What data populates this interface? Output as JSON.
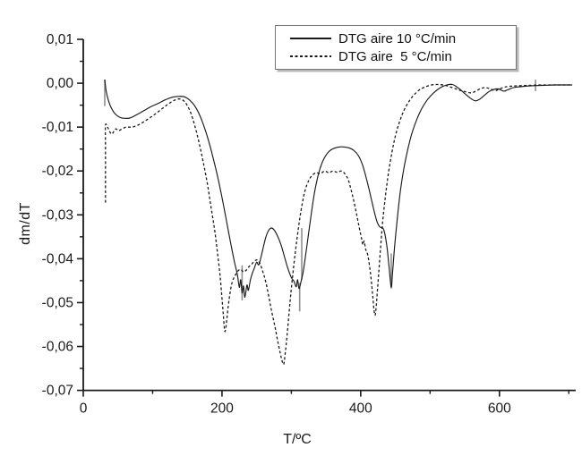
{
  "chart_data": {
    "type": "line",
    "title": "",
    "xlabel": "T/ºC",
    "ylabel": "dm/dT",
    "xlim": [
      0,
      710
    ],
    "ylim": [
      -0.07,
      0.01
    ],
    "grid": false,
    "legend_position": "top-center",
    "colors": {
      "line": "#1a1a1a",
      "axis": "#1a1a1a",
      "noise": "#909090",
      "legend_border": "#767676"
    },
    "x_axis": {
      "major": [
        {
          "t": 0,
          "label": "0"
        },
        {
          "t": 200,
          "label": "200"
        },
        {
          "t": 400,
          "label": "400"
        },
        {
          "t": 600,
          "label": "600"
        }
      ],
      "minor": [
        100,
        300,
        500,
        700
      ]
    },
    "y_axis": {
      "major": [
        {
          "v": 0.01,
          "label": "0,01"
        },
        {
          "v": 0.0,
          "label": "0,00"
        },
        {
          "v": -0.01,
          "label": "-0,01"
        },
        {
          "v": -0.02,
          "label": "-0,02"
        },
        {
          "v": -0.03,
          "label": "-0,03"
        },
        {
          "v": -0.04,
          "label": "-0,04"
        },
        {
          "v": -0.05,
          "label": "-0,05"
        },
        {
          "v": -0.06,
          "label": "-0,06"
        },
        {
          "v": -0.07,
          "label": "-0,07"
        }
      ],
      "minor": [
        0.005,
        -0.005,
        -0.015,
        -0.025,
        -0.035,
        -0.045,
        -0.055,
        -0.065
      ]
    },
    "legend": [
      {
        "label": "DTG aire 10 °C/min",
        "style": "solid"
      },
      {
        "label": "DTG aire  5 °C/min",
        "style": "dashed"
      }
    ],
    "series": [
      {
        "name": "DTG aire 10 °C/min",
        "style": "solid",
        "points": [
          [
            31,
            0.0008
          ],
          [
            33,
            -0.0018
          ],
          [
            36,
            -0.0038
          ],
          [
            40,
            -0.0055
          ],
          [
            46,
            -0.007
          ],
          [
            53,
            -0.0078
          ],
          [
            60,
            -0.008
          ],
          [
            68,
            -0.0079
          ],
          [
            78,
            -0.0071
          ],
          [
            88,
            -0.0062
          ],
          [
            98,
            -0.0053
          ],
          [
            108,
            -0.0046
          ],
          [
            118,
            -0.0038
          ],
          [
            128,
            -0.0032
          ],
          [
            138,
            -0.003
          ],
          [
            146,
            -0.0031
          ],
          [
            153,
            -0.0038
          ],
          [
            160,
            -0.005
          ],
          [
            167,
            -0.007
          ],
          [
            174,
            -0.0098
          ],
          [
            181,
            -0.0133
          ],
          [
            188,
            -0.0175
          ],
          [
            194,
            -0.0215
          ],
          [
            200,
            -0.026
          ],
          [
            206,
            -0.031
          ],
          [
            212,
            -0.036
          ],
          [
            218,
            -0.0408
          ],
          [
            222,
            -0.0435
          ],
          [
            225,
            -0.0465
          ],
          [
            227,
            -0.0448
          ],
          [
            229,
            -0.0478
          ],
          [
            231,
            -0.0462
          ],
          [
            233,
            -0.0488
          ],
          [
            236,
            -0.046
          ],
          [
            238,
            -0.0472
          ],
          [
            241,
            -0.0448
          ],
          [
            244,
            -0.0432
          ],
          [
            247,
            -0.042
          ],
          [
            250,
            -0.0408
          ],
          [
            253,
            -0.0414
          ],
          [
            256,
            -0.0398
          ],
          [
            259,
            -0.0378
          ],
          [
            263,
            -0.0352
          ],
          [
            267,
            -0.0336
          ],
          [
            271,
            -0.033
          ],
          [
            275,
            -0.0334
          ],
          [
            280,
            -0.0348
          ],
          [
            285,
            -0.0368
          ],
          [
            290,
            -0.0395
          ],
          [
            295,
            -0.0422
          ],
          [
            300,
            -0.0443
          ],
          [
            304,
            -0.0452
          ],
          [
            307,
            -0.0464
          ],
          [
            309,
            -0.0448
          ],
          [
            311,
            -0.0468
          ],
          [
            314,
            -0.0452
          ],
          [
            317,
            -0.043
          ],
          [
            320,
            -0.0398
          ],
          [
            324,
            -0.0352
          ],
          [
            328,
            -0.0306
          ],
          [
            332,
            -0.0262
          ],
          [
            336,
            -0.0228
          ],
          [
            341,
            -0.0196
          ],
          [
            347,
            -0.0172
          ],
          [
            354,
            -0.0156
          ],
          [
            362,
            -0.0148
          ],
          [
            372,
            -0.0145
          ],
          [
            382,
            -0.0147
          ],
          [
            390,
            -0.0153
          ],
          [
            397,
            -0.0166
          ],
          [
            403,
            -0.0188
          ],
          [
            409,
            -0.0222
          ],
          [
            415,
            -0.0262
          ],
          [
            420,
            -0.0296
          ],
          [
            424,
            -0.0318
          ],
          [
            428,
            -0.0328
          ],
          [
            432,
            -0.033
          ],
          [
            435,
            -0.0345
          ],
          [
            438,
            -0.0375
          ],
          [
            441,
            -0.042
          ],
          [
            444,
            -0.0465
          ],
          [
            446,
            -0.043
          ],
          [
            449,
            -0.037
          ],
          [
            453,
            -0.0305
          ],
          [
            457,
            -0.0248
          ],
          [
            462,
            -0.0196
          ],
          [
            468,
            -0.015
          ],
          [
            474,
            -0.0113
          ],
          [
            481,
            -0.0082
          ],
          [
            488,
            -0.0058
          ],
          [
            496,
            -0.0038
          ],
          [
            505,
            -0.0022
          ],
          [
            515,
            -0.001
          ],
          [
            524,
            -0.0004
          ],
          [
            532,
            -0.0003
          ],
          [
            540,
            -0.001
          ],
          [
            549,
            -0.0022
          ],
          [
            558,
            -0.0034
          ],
          [
            565,
            -0.004
          ],
          [
            571,
            -0.0037
          ],
          [
            578,
            -0.0028
          ],
          [
            585,
            -0.0019
          ],
          [
            592,
            -0.0014
          ],
          [
            599,
            -0.0013
          ],
          [
            606,
            -0.0018
          ],
          [
            612,
            -0.0015
          ],
          [
            620,
            -0.001
          ],
          [
            630,
            -0.0008
          ],
          [
            645,
            -0.0006
          ],
          [
            660,
            -0.0005
          ],
          [
            680,
            -0.0004
          ],
          [
            705,
            -0.0004
          ]
        ]
      },
      {
        "name": "DTG aire 5 °C/min",
        "style": "dashed",
        "points": [
          [
            32,
            -0.0272
          ],
          [
            32,
            -0.015
          ],
          [
            32,
            -0.0096
          ],
          [
            35,
            -0.01
          ],
          [
            38,
            -0.011
          ],
          [
            41,
            -0.0116
          ],
          [
            44,
            -0.011
          ],
          [
            47,
            -0.0104
          ],
          [
            51,
            -0.0108
          ],
          [
            56,
            -0.0104
          ],
          [
            62,
            -0.01
          ],
          [
            70,
            -0.01
          ],
          [
            78,
            -0.0096
          ],
          [
            86,
            -0.0089
          ],
          [
            95,
            -0.008
          ],
          [
            104,
            -0.007
          ],
          [
            113,
            -0.0059
          ],
          [
            122,
            -0.0048
          ],
          [
            130,
            -0.004
          ],
          [
            137,
            -0.0036
          ],
          [
            143,
            -0.0038
          ],
          [
            149,
            -0.0048
          ],
          [
            155,
            -0.0068
          ],
          [
            161,
            -0.0098
          ],
          [
            167,
            -0.0136
          ],
          [
            173,
            -0.018
          ],
          [
            179,
            -0.023
          ],
          [
            184,
            -0.028
          ],
          [
            189,
            -0.033
          ],
          [
            193,
            -0.038
          ],
          [
            197,
            -0.0435
          ],
          [
            200,
            -0.049
          ],
          [
            202,
            -0.053
          ],
          [
            204,
            -0.0565
          ],
          [
            206,
            -0.0552
          ],
          [
            209,
            -0.0508
          ],
          [
            212,
            -0.0474
          ],
          [
            215,
            -0.0452
          ],
          [
            219,
            -0.0438
          ],
          [
            223,
            -0.0428
          ],
          [
            227,
            -0.0424
          ],
          [
            231,
            -0.043
          ],
          [
            235,
            -0.0426
          ],
          [
            239,
            -0.0418
          ],
          [
            243,
            -0.0412
          ],
          [
            247,
            -0.0405
          ],
          [
            251,
            -0.0403
          ],
          [
            255,
            -0.0412
          ],
          [
            259,
            -0.043
          ],
          [
            263,
            -0.0452
          ],
          [
            267,
            -0.0482
          ],
          [
            271,
            -0.0515
          ],
          [
            276,
            -0.0552
          ],
          [
            280,
            -0.0585
          ],
          [
            284,
            -0.0615
          ],
          [
            287,
            -0.0635
          ],
          [
            289,
            -0.064
          ],
          [
            291,
            -0.0618
          ],
          [
            294,
            -0.0572
          ],
          [
            297,
            -0.0518
          ],
          [
            300,
            -0.0468
          ],
          [
            304,
            -0.0408
          ],
          [
            308,
            -0.0356
          ],
          [
            312,
            -0.031
          ],
          [
            316,
            -0.0272
          ],
          [
            320,
            -0.0243
          ],
          [
            325,
            -0.0222
          ],
          [
            330,
            -0.021
          ],
          [
            336,
            -0.0204
          ],
          [
            342,
            -0.0206
          ],
          [
            348,
            -0.02
          ],
          [
            354,
            -0.0204
          ],
          [
            360,
            -0.02
          ],
          [
            366,
            -0.0203
          ],
          [
            372,
            -0.02
          ],
          [
            377,
            -0.0206
          ],
          [
            382,
            -0.022
          ],
          [
            386,
            -0.0242
          ],
          [
            390,
            -0.0268
          ],
          [
            394,
            -0.0298
          ],
          [
            398,
            -0.033
          ],
          [
            401,
            -0.0352
          ],
          [
            403,
            -0.0368
          ],
          [
            405,
            -0.036
          ],
          [
            407,
            -0.0378
          ],
          [
            409,
            -0.0385
          ],
          [
            411,
            -0.0398
          ],
          [
            414,
            -0.0432
          ],
          [
            417,
            -0.0478
          ],
          [
            419,
            -0.0515
          ],
          [
            421,
            -0.0528
          ],
          [
            423,
            -0.0495
          ],
          [
            426,
            -0.0432
          ],
          [
            429,
            -0.0368
          ],
          [
            432,
            -0.031
          ],
          [
            436,
            -0.0253
          ],
          [
            440,
            -0.0205
          ],
          [
            445,
            -0.0158
          ],
          [
            450,
            -0.012
          ],
          [
            456,
            -0.0088
          ],
          [
            462,
            -0.0063
          ],
          [
            469,
            -0.0043
          ],
          [
            476,
            -0.0028
          ],
          [
            484,
            -0.0016
          ],
          [
            492,
            -0.0009
          ],
          [
            502,
            -0.0004
          ],
          [
            512,
            -0.0003
          ],
          [
            522,
            -0.0005
          ],
          [
            532,
            -0.001
          ],
          [
            541,
            -0.0015
          ],
          [
            550,
            -0.0019
          ],
          [
            559,
            -0.0022
          ],
          [
            566,
            -0.0018
          ],
          [
            573,
            -0.0012
          ],
          [
            580,
            -0.001
          ],
          [
            587,
            -0.0013
          ],
          [
            594,
            -0.0017
          ],
          [
            600,
            -0.0013
          ],
          [
            607,
            -0.0009
          ],
          [
            615,
            -0.0007
          ],
          [
            625,
            -0.0006
          ],
          [
            640,
            -0.0005
          ],
          [
            660,
            -0.0004
          ],
          [
            685,
            -0.0004
          ],
          [
            705,
            -0.0004
          ]
        ]
      }
    ],
    "noise_spikes": [
      {
        "t": 31,
        "v1": 0.0008,
        "v2": -0.0052
      },
      {
        "t": 229,
        "v1": -0.0415,
        "v2": -0.0495
      },
      {
        "t": 312,
        "v1": -0.0455,
        "v2": -0.052
      },
      {
        "t": 315,
        "v1": -0.033,
        "v2": -0.0448
      },
      {
        "t": 444,
        "v1": -0.0388,
        "v2": -0.0468
      },
      {
        "t": 652,
        "v1": -0.0018,
        "v2": 0.0008
      }
    ]
  }
}
